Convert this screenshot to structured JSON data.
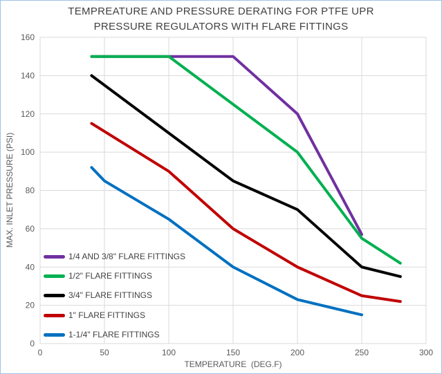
{
  "title": {
    "line1": "TEMPREATURE AND PRESSURE DERATING FOR PTFE UPR",
    "line2": "PRESSURE REGULATORS WITH FLARE FITTINGS"
  },
  "axes": {
    "x_title": "TEMPERATURE  (DEG.F)",
    "y_title": "MAX. INLET PRESSURE (PSI)"
  },
  "colors": {
    "gridline": "#D9D9D9",
    "plot_border": "#D9D9D9",
    "tick_text": "#595959",
    "title_text": "#404040",
    "chart_frame": "#9DC3E6"
  },
  "chart_data": {
    "type": "line",
    "title": "TEMPREATURE AND PRESSURE DERATING FOR PTFE UPR PRESSURE REGULATORS WITH FLARE FITTINGS",
    "xlabel": "TEMPERATURE  (DEG.F)",
    "ylabel": "MAX. INLET PRESSURE (PSI)",
    "xlim": [
      0,
      300
    ],
    "ylim": [
      0,
      160
    ],
    "x_ticks": [
      0,
      50,
      100,
      150,
      200,
      250,
      300
    ],
    "y_ticks": [
      0,
      20,
      40,
      60,
      80,
      100,
      120,
      140,
      160
    ],
    "grid": true,
    "legend_position": "inside-bottom-left",
    "series": [
      {
        "name": "1/4 AND 3/8\" FLARE FITTINGS",
        "color": "#7030A0",
        "x": [
          40,
          150,
          200,
          250
        ],
        "y": [
          150,
          150,
          120,
          57
        ]
      },
      {
        "name": "1/2\" FLARE FITTINGS",
        "color": "#00B050",
        "x": [
          40,
          100,
          200,
          250,
          280
        ],
        "y": [
          150,
          150,
          100,
          55,
          42
        ]
      },
      {
        "name": "3/4\" FLARE FITTINGS",
        "color": "#000000",
        "x": [
          40,
          150,
          200,
          250,
          280
        ],
        "y": [
          140,
          85,
          70,
          40,
          35
        ]
      },
      {
        "name": "1\" FLARE FITTINGS",
        "color": "#C00000",
        "x": [
          40,
          100,
          150,
          200,
          250,
          280
        ],
        "y": [
          115,
          90,
          60,
          40,
          25,
          22
        ]
      },
      {
        "name": "1-1/4\" FLARE FITTINGS",
        "color": "#0070C0",
        "x": [
          40,
          50,
          100,
          150,
          200,
          250
        ],
        "y": [
          92,
          85,
          65,
          40,
          23,
          15
        ]
      }
    ]
  }
}
